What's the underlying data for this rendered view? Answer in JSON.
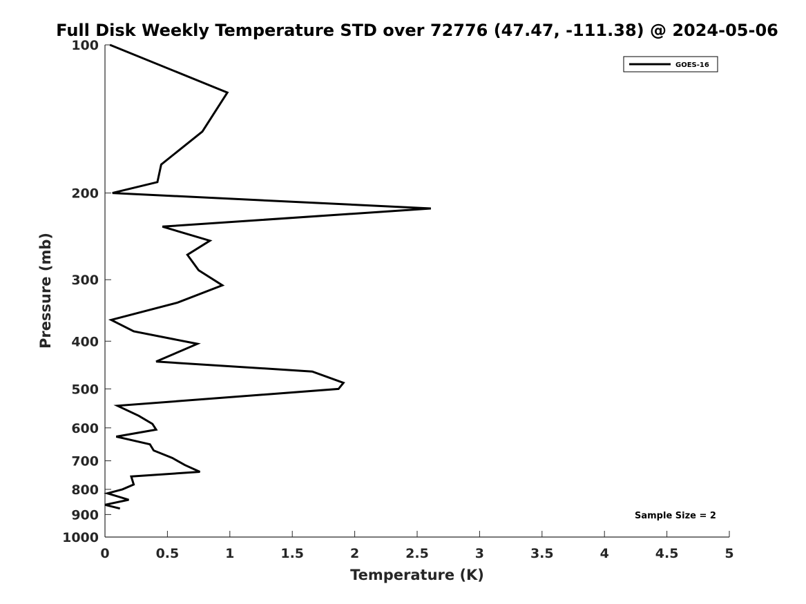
{
  "chart_data": {
    "type": "line",
    "title": "Full Disk Weekly Temperature STD over 72776 (47.47, -111.38) @ 2024-05-06",
    "xlabel": "Temperature (K)",
    "ylabel": "Pressure (mb)",
    "xlim": [
      0,
      5
    ],
    "ylim": [
      100,
      1000
    ],
    "y_scale": "log",
    "y_reversed": true,
    "x_ticks": [
      "0",
      "0.5",
      "1",
      "1.5",
      "2",
      "2.5",
      "3",
      "3.5",
      "4",
      "4.5",
      "5"
    ],
    "y_ticks": [
      "100",
      "200",
      "300",
      "400",
      "500",
      "600",
      "700",
      "800",
      "900",
      "1000"
    ],
    "grid": false,
    "legend_position": "top-right",
    "annotation": "Sample Size = 2",
    "series": [
      {
        "name": "GOES-16",
        "color": "#000000",
        "points": [
          [
            0.04,
            100
          ],
          [
            0.98,
            125
          ],
          [
            0.78,
            150
          ],
          [
            0.45,
            175
          ],
          [
            0.42,
            190
          ],
          [
            0.06,
            200
          ],
          [
            2.61,
            215
          ],
          [
            0.46,
            234
          ],
          [
            0.84,
            250
          ],
          [
            0.66,
            267
          ],
          [
            0.75,
            287
          ],
          [
            0.94,
            308
          ],
          [
            0.58,
            334
          ],
          [
            0.05,
            362
          ],
          [
            0.23,
            382
          ],
          [
            0.74,
            405
          ],
          [
            0.41,
            440
          ],
          [
            1.66,
            461
          ],
          [
            1.91,
            486
          ],
          [
            1.87,
            500
          ],
          [
            0.1,
            541
          ],
          [
            0.27,
            567
          ],
          [
            0.38,
            589
          ],
          [
            0.41,
            605
          ],
          [
            0.09,
            625
          ],
          [
            0.36,
            648
          ],
          [
            0.39,
            667
          ],
          [
            0.54,
            691
          ],
          [
            0.64,
            714
          ],
          [
            0.76,
            737
          ],
          [
            0.21,
            753
          ],
          [
            0.23,
            782
          ],
          [
            0.14,
            800
          ],
          [
            0.02,
            815
          ],
          [
            0.19,
            840
          ],
          [
            0.0,
            860
          ],
          [
            0.12,
            875
          ]
        ]
      }
    ]
  }
}
